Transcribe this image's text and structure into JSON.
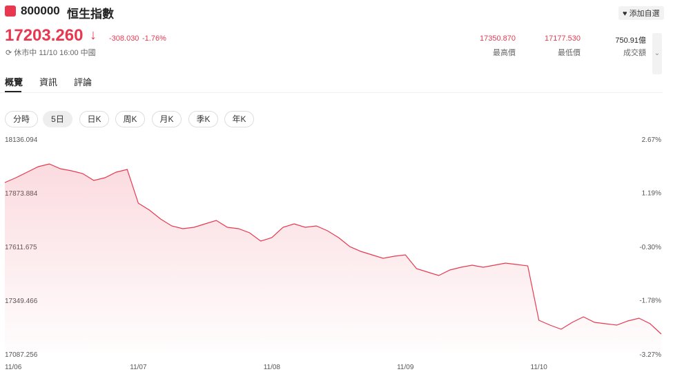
{
  "header": {
    "symbol": "800000",
    "name": "恒生指數",
    "watch_button": "添加自選",
    "price": "17203.260",
    "change": "-308.030",
    "change_pct": "-1.76%",
    "status": "休市中 11/10 16:00 中國",
    "stats": [
      {
        "value": "17350.870",
        "label": "最高價"
      },
      {
        "value": "17177.530",
        "label": "最低價"
      },
      {
        "value": "750.91億",
        "label": "成交額"
      }
    ]
  },
  "tabs": [
    "概覽",
    "資訊",
    "評論"
  ],
  "periods": [
    "分時",
    "5日",
    "日K",
    "周K",
    "月K",
    "季K",
    "年K"
  ],
  "chart_data": {
    "type": "line",
    "categories": [
      "11/06",
      null,
      null,
      null,
      null,
      null,
      null,
      null,
      null,
      null,
      null,
      null,
      "11/07",
      null,
      null,
      null,
      null,
      null,
      null,
      null,
      null,
      null,
      null,
      null,
      "11/08",
      null,
      null,
      null,
      null,
      null,
      null,
      null,
      null,
      null,
      null,
      null,
      "11/09",
      null,
      null,
      null,
      null,
      null,
      null,
      null,
      null,
      null,
      null,
      null,
      "11/10",
      null,
      null,
      null,
      null,
      null,
      null,
      null,
      null,
      null,
      null,
      null
    ],
    "series": [
      {
        "color": "#e8384f",
        "values": [
          17917.6,
          17941.1,
          17968.0,
          17994.9,
          18008.3,
          17984.8,
          17974.7,
          17961.3,
          17927.7,
          17941.1,
          17968.0,
          17981.4,
          17816.7,
          17783.1,
          17739.4,
          17705.8,
          17692.3,
          17699.0,
          17715.8,
          17732.7,
          17699.0,
          17692.3,
          17672.1,
          17631.8,
          17648.6,
          17699.0,
          17715.8,
          17699.0,
          17705.8,
          17682.2,
          17648.6,
          17604.9,
          17581.4,
          17564.6,
          17547.7,
          17557.8,
          17564.6,
          17497.3,
          17480.5,
          17463.7,
          17490.6,
          17504.0,
          17514.1,
          17504.0,
          17514.1,
          17524.2,
          17517.5,
          17510.8,
          17245.2,
          17221.6,
          17201.5,
          17235.1,
          17262.0,
          17235.1,
          17228.4,
          17221.6,
          17241.8,
          17255.3,
          17228.4,
          17177.9
        ]
      }
    ],
    "ylim": [
      17087.256,
      18136.094
    ],
    "yticks": [
      17087.256,
      17349.466,
      17611.675,
      17873.884,
      18136.094
    ],
    "y2lim": [
      -3.27,
      2.67
    ],
    "y2ticks": [
      {
        "value": -3.27,
        "label": "-3.27%"
      },
      {
        "value": -1.78,
        "label": "-1.78%"
      },
      {
        "value": -0.3,
        "label": "-0.30%"
      },
      {
        "value": 1.19,
        "label": "1.19%"
      },
      {
        "value": 2.67,
        "label": "2.67%"
      }
    ],
    "grid": false
  }
}
